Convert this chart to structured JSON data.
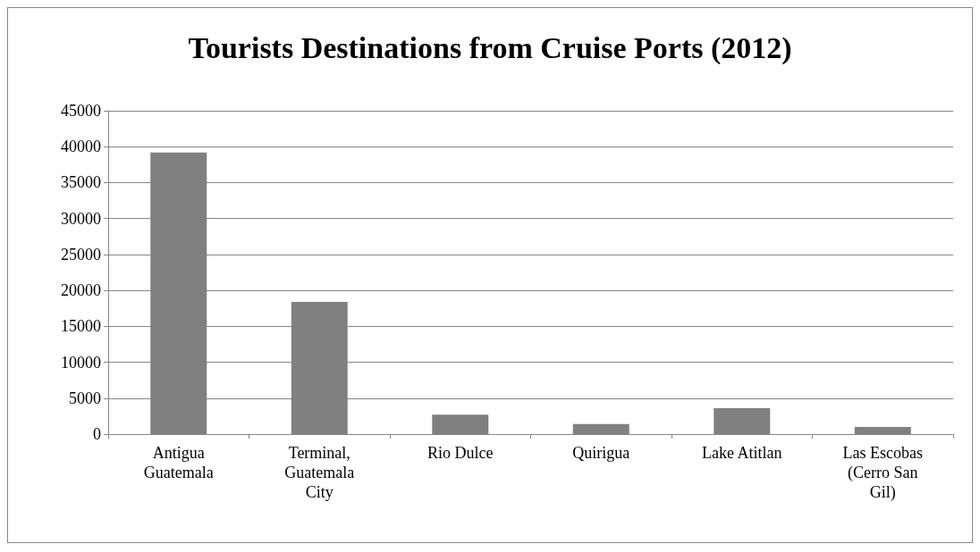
{
  "chart_data": {
    "type": "bar",
    "title": "Tourists Destinations from Cruise Ports (2012)",
    "categories": [
      "Antigua\nGuatemala",
      "Terminal,\nGuatemala\nCity",
      "Rio Dulce",
      "Quirigua",
      "Lake Atitlan",
      "Las Escobas\n(Cerro San\nGil)"
    ],
    "values": [
      39200,
      18400,
      2700,
      1400,
      3600,
      1000
    ],
    "color": "#808080",
    "ylim": [
      0,
      45000
    ],
    "yticks": [
      0,
      5000,
      10000,
      15000,
      20000,
      25000,
      30000,
      35000,
      40000,
      45000
    ],
    "grid": "y"
  }
}
